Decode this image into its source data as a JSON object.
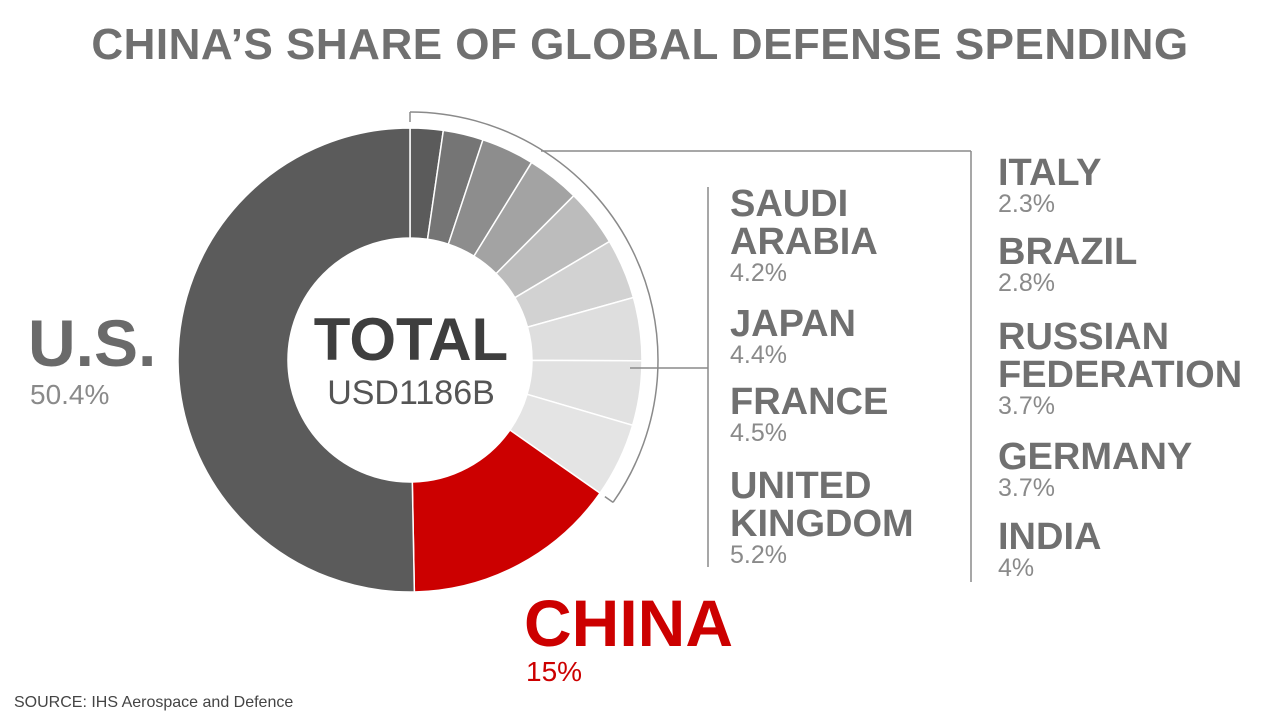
{
  "title": "CHINA’S SHARE OF GLOBAL DEFENSE SPENDING",
  "center": {
    "label": "TOTAL",
    "amount": "USD1186B"
  },
  "source": "SOURCE: IHS Aerospace and Defence",
  "colors": {
    "us": "#5b5b5b",
    "china": "#cc0000"
  },
  "chart_data": {
    "type": "pie",
    "title": "CHINA’S SHARE OF GLOBAL DEFENSE SPENDING",
    "total_label": "TOTAL",
    "total_value": "USD1186B",
    "slices": [
      {
        "label": "ITALY",
        "value": 2.3,
        "value_label": "2.3%",
        "color": "#5b5b5b"
      },
      {
        "label": "BRAZIL",
        "value": 2.8,
        "value_label": "2.8%",
        "color": "#757575"
      },
      {
        "label": "RUSSIAN FEDERATION",
        "value": 3.7,
        "value_label": "3.7%",
        "color": "#8d8d8d"
      },
      {
        "label": "GERMANY",
        "value": 3.7,
        "value_label": "3.7%",
        "color": "#a3a3a3"
      },
      {
        "label": "INDIA",
        "value": 4.0,
        "value_label": "4%",
        "color": "#bcbcbc"
      },
      {
        "label": "SAUDI ARABIA",
        "value": 4.2,
        "value_label": "4.2%",
        "color": "#d2d2d2"
      },
      {
        "label": "JAPAN",
        "value": 4.4,
        "value_label": "4.4%",
        "color": "#dedede"
      },
      {
        "label": "FRANCE",
        "value": 4.5,
        "value_label": "4.5%",
        "color": "#e1e1e1"
      },
      {
        "label": "UNITED KINGDOM",
        "value": 5.2,
        "value_label": "5.2%",
        "color": "#e4e4e4"
      },
      {
        "label": "CHINA",
        "value": 15.0,
        "value_label": "15%",
        "color": "#cc0000"
      },
      {
        "label": "U.S.",
        "value": 50.4,
        "value_label": "50.4%",
        "color": "#5b5b5b"
      }
    ]
  },
  "labels": {
    "us": {
      "name": "U.S.",
      "pct": "50.4%"
    },
    "china": {
      "name": "CHINA",
      "pct": "15%"
    },
    "middle_column": [
      {
        "name_lines": [
          "SAUDI",
          "ARABIA"
        ],
        "pct": "4.2%"
      },
      {
        "name_lines": [
          "JAPAN"
        ],
        "pct": "4.4%"
      },
      {
        "name_lines": [
          "FRANCE"
        ],
        "pct": "4.5%"
      },
      {
        "name_lines": [
          "UNITED",
          "KINGDOM"
        ],
        "pct": "5.2%"
      }
    ],
    "right_column": [
      {
        "name_lines": [
          "ITALY"
        ],
        "pct": "2.3%"
      },
      {
        "name_lines": [
          "BRAZIL"
        ],
        "pct": "2.8%"
      },
      {
        "name_lines": [
          "RUSSIAN",
          "FEDERATION"
        ],
        "pct": "3.7%"
      },
      {
        "name_lines": [
          "GERMANY"
        ],
        "pct": "3.7%"
      },
      {
        "name_lines": [
          "INDIA"
        ],
        "pct": "4%"
      }
    ]
  }
}
